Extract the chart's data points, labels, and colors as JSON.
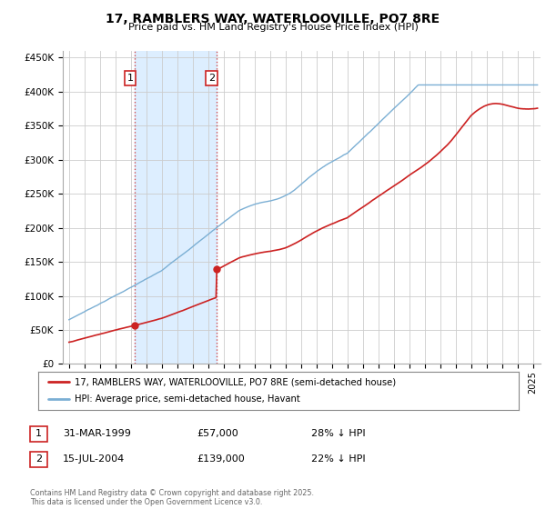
{
  "title": "17, RAMBLERS WAY, WATERLOOVILLE, PO7 8RE",
  "subtitle": "Price paid vs. HM Land Registry's House Price Index (HPI)",
  "legend_line1": "17, RAMBLERS WAY, WATERLOOVILLE, PO7 8RE (semi-detached house)",
  "legend_line2": "HPI: Average price, semi-detached house, Havant",
  "footer": "Contains HM Land Registry data © Crown copyright and database right 2025.\nThis data is licensed under the Open Government Licence v3.0.",
  "hpi_color": "#7bafd4",
  "price_color": "#cc2222",
  "purchase1_date_x": 1999.25,
  "purchase1_price": 57000,
  "purchase2_date_x": 2004.54,
  "purchase2_price": 139000,
  "table_rows": [
    {
      "num": "1",
      "date": "31-MAR-1999",
      "price": "£57,000",
      "hpi": "28% ↓ HPI"
    },
    {
      "num": "2",
      "date": "15-JUL-2004",
      "price": "£139,000",
      "hpi": "22% ↓ HPI"
    }
  ],
  "ylim": [
    0,
    460000
  ],
  "xlim_start": 1994.6,
  "xlim_end": 2025.5,
  "background_color": "#ffffff",
  "grid_color": "#cccccc",
  "shade_color": "#ddeeff"
}
